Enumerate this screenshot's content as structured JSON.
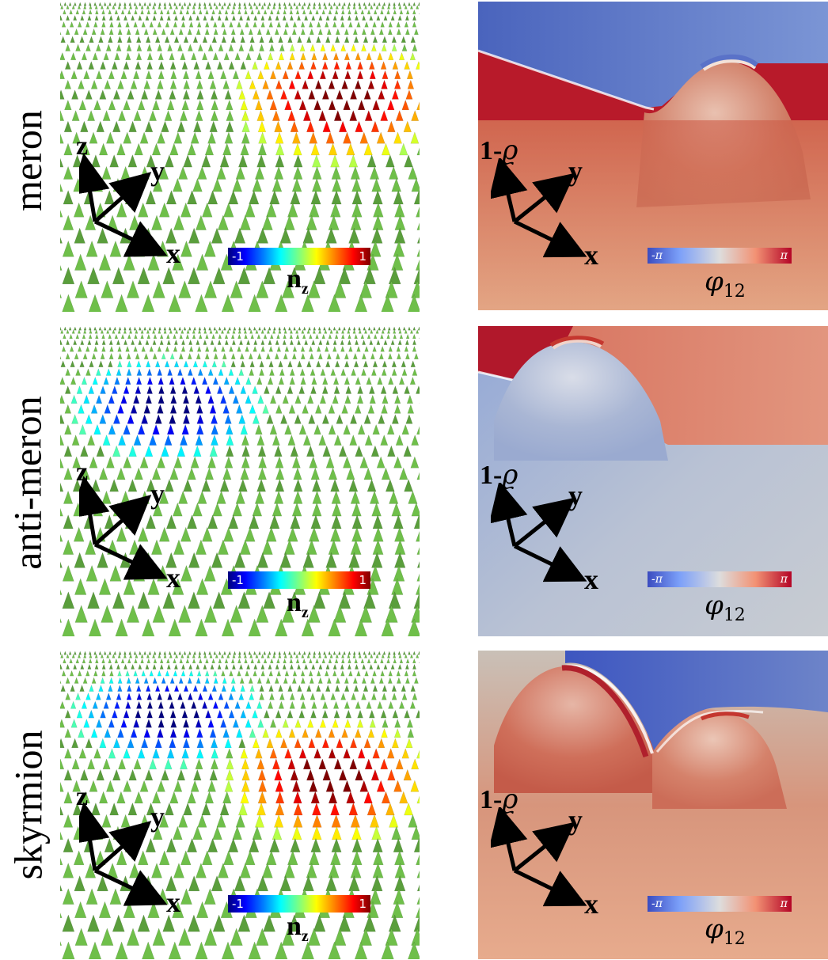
{
  "rows": [
    {
      "id": "meron",
      "label": "meron"
    },
    {
      "id": "anti-meron",
      "label": "anti-meron"
    },
    {
      "id": "skyrmion",
      "label": "skyrmion"
    }
  ],
  "axes": {
    "x": "x",
    "y": "y",
    "z": "z",
    "height_prefix": "1-",
    "height_symbol": "ϱ"
  },
  "colorbar_nz": {
    "min": "-1",
    "max": "1",
    "label": "n",
    "label_sub": "z",
    "colormap": "jet"
  },
  "colorbar_phi": {
    "min": "-π",
    "max": "π",
    "label": "φ",
    "label_sub": "12",
    "colormap": "coolwarm"
  },
  "colors": {
    "cone_green": "#6fbf4a",
    "cone_dark": "#3f7d2a",
    "phase_red": "#b40426",
    "phase_blue": "#3b4cc0",
    "neutral": "#c9c9c9"
  }
}
